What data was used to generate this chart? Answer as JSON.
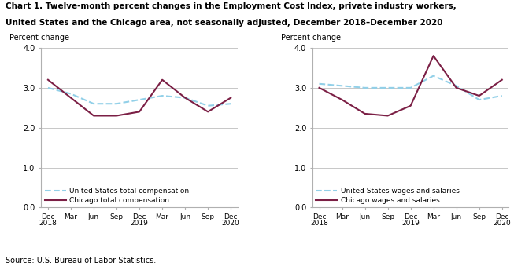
{
  "title_line1": "Chart 1. Twelve-month percent changes in the Employment Cost Index, private industry workers,",
  "title_line2": "United States and the Chicago area, not seasonally adjusted, December 2018–December 2020",
  "source": "Source: U.S. Bureau of Labor Statistics.",
  "x_labels": [
    "Dec\n2018",
    "Mar",
    "Jun",
    "Sep",
    "Dec\n2019",
    "Mar",
    "Jun",
    "Sep",
    "Dec\n2020"
  ],
  "ylabel": "Percent change",
  "ylim": [
    0.0,
    4.0
  ],
  "yticks": [
    0.0,
    1.0,
    2.0,
    3.0,
    4.0
  ],
  "chart1": {
    "us_total": [
      3.0,
      2.85,
      2.6,
      2.6,
      2.7,
      2.8,
      2.75,
      2.55,
      2.6
    ],
    "chicago_total": [
      3.2,
      2.75,
      2.3,
      2.3,
      2.4,
      3.2,
      2.75,
      2.4,
      2.75
    ],
    "legend_us": "United States total compensation",
    "legend_chicago": "Chicago total compensation"
  },
  "chart2": {
    "us_wages": [
      3.1,
      3.05,
      3.0,
      3.0,
      3.0,
      3.3,
      3.05,
      2.7,
      2.8
    ],
    "chicago_wages": [
      3.0,
      2.7,
      2.35,
      2.3,
      2.55,
      3.8,
      3.0,
      2.8,
      3.2
    ],
    "legend_us": "United States wages and salaries",
    "legend_chicago": "Chicago wages and salaries"
  },
  "us_color": "#92d0e8",
  "chicago_color": "#7b1f45",
  "us_linestyle": "--",
  "chicago_linestyle": "-",
  "linewidth": 1.5
}
